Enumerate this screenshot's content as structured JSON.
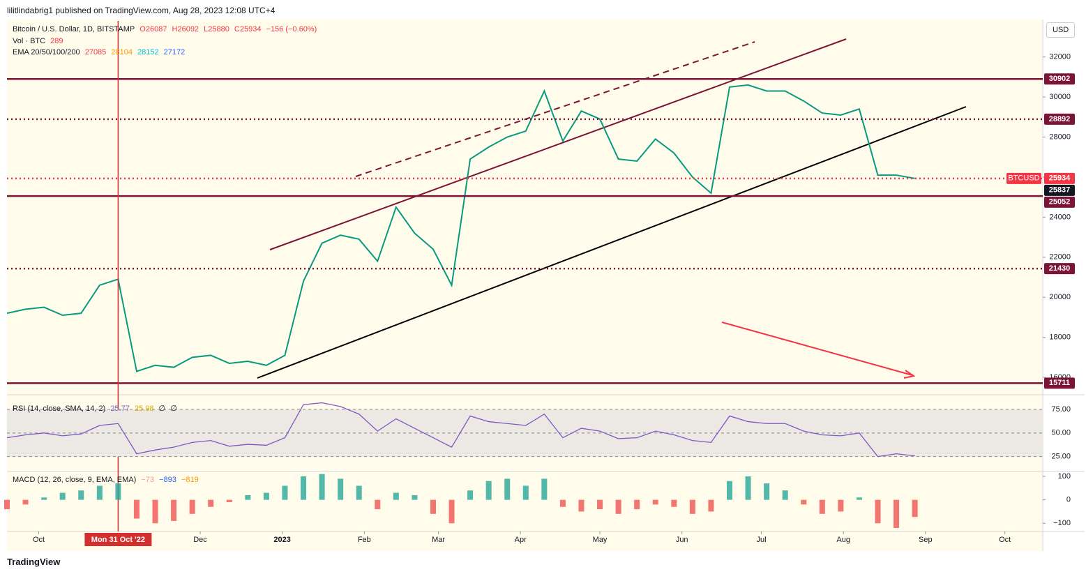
{
  "header": {
    "publisher": "lilitlindabrig1 published on TradingView.com, Aug 28, 2023 12:08 UTC+4",
    "currency": "USD",
    "footer": "TradingView"
  },
  "legend": {
    "symbol": "Bitcoin / U.S. Dollar, 1D, BITSTAMP",
    "open": "O26087",
    "high": "H26092",
    "low": "L25880",
    "close": "C25934",
    "change": "−156 (−0.60%)",
    "volume_title": "Vol · BTC",
    "volume": "289",
    "ema_title": "EMA 20/50/100/200",
    "ema": [
      "27085",
      "28104",
      "28152",
      "27172"
    ]
  },
  "chart_data": [
    {
      "type": "line",
      "title": "Bitcoin / U.S. Dollar, 1D, BITSTAMP",
      "x": [
        "2022-09-19",
        "2022-09-26",
        "2022-10-03",
        "2022-10-10",
        "2022-10-17",
        "2022-10-24",
        "2022-10-31",
        "2022-11-07",
        "2022-11-14",
        "2022-11-21",
        "2022-11-28",
        "2022-12-05",
        "2022-12-12",
        "2022-12-19",
        "2022-12-26",
        "2023-01-02",
        "2023-01-09",
        "2023-01-16",
        "2023-01-23",
        "2023-01-30",
        "2023-02-06",
        "2023-02-13",
        "2023-02-20",
        "2023-02-27",
        "2023-03-06",
        "2023-03-13",
        "2023-03-20",
        "2023-03-27",
        "2023-04-03",
        "2023-04-10",
        "2023-04-17",
        "2023-04-24",
        "2023-05-01",
        "2023-05-08",
        "2023-05-15",
        "2023-05-22",
        "2023-05-29",
        "2023-06-05",
        "2023-06-12",
        "2023-06-19",
        "2023-06-26",
        "2023-07-03",
        "2023-07-10",
        "2023-07-17",
        "2023-07-24",
        "2023-07-31",
        "2023-08-07",
        "2023-08-14",
        "2023-08-21",
        "2023-08-28"
      ],
      "series": [
        {
          "name": "BTCUSD",
          "color": "#089981",
          "values": [
            19200,
            19400,
            19500,
            19100,
            19200,
            20600,
            20900,
            16300,
            16600,
            16500,
            17000,
            17100,
            16700,
            16800,
            16600,
            17100,
            20800,
            22700,
            23100,
            22900,
            21800,
            24500,
            23200,
            22400,
            20600,
            26900,
            27500,
            28000,
            28300,
            30300,
            27800,
            29300,
            28900,
            26900,
            26800,
            27900,
            27200,
            26000,
            25200,
            30500,
            30600,
            30300,
            30300,
            29800,
            29200,
            29100,
            29400,
            26100,
            26100,
            25934
          ]
        }
      ],
      "xlim": [
        "2022-09-19",
        "2023-10-14"
      ],
      "xticks": [
        {
          "value": "2022-10-01",
          "label": "Oct"
        },
        {
          "value": "2022-12-01",
          "label": "Dec"
        },
        {
          "value": "2023-01-01",
          "label": "2023"
        },
        {
          "value": "2023-02-01",
          "label": "Feb"
        },
        {
          "value": "2023-03-01",
          "label": "Mar"
        },
        {
          "value": "2023-04-01",
          "label": "Apr"
        },
        {
          "value": "2023-05-01",
          "label": "May"
        },
        {
          "value": "2023-06-01",
          "label": "Jun"
        },
        {
          "value": "2023-07-01",
          "label": "Jul"
        },
        {
          "value": "2023-08-01",
          "label": "Aug"
        },
        {
          "value": "2023-09-01",
          "label": "Sep"
        },
        {
          "value": "2023-10-01",
          "label": "Oct"
        }
      ],
      "ylim": [
        15200,
        33800
      ],
      "yticks": [
        16000,
        18000,
        20000,
        22000,
        24000,
        26000,
        28000,
        30000,
        32000
      ],
      "levels": [
        {
          "value": 30902,
          "style": "solid",
          "color": "#7b1437"
        },
        {
          "value": 28892,
          "style": "dotted",
          "color": "#7b1437"
        },
        {
          "value": 25934,
          "style": "dotted",
          "color": "#f23645"
        },
        {
          "value": 25837,
          "style": "none",
          "color": "#131722"
        },
        {
          "value": 25052,
          "style": "solid",
          "color": "#7b1437"
        },
        {
          "value": 21430,
          "style": "dotted",
          "color": "#7b1437"
        },
        {
          "value": 15711,
          "style": "solid",
          "color": "#7b1437"
        }
      ],
      "crosshair": {
        "value": "2022-10-31",
        "label": "Mon 31 Oct '22"
      }
    },
    {
      "type": "line",
      "title": "RSI (14, close, SMA, 14, 2)",
      "annotations": [
        "25.77",
        "25.98",
        "∅",
        "∅"
      ],
      "series": [
        {
          "name": "RSI",
          "color": "#7e57c2",
          "values": [
            45,
            48,
            50,
            47,
            49,
            58,
            60,
            28,
            32,
            35,
            40,
            42,
            36,
            38,
            37,
            45,
            80,
            82,
            78,
            70,
            52,
            65,
            55,
            45,
            35,
            68,
            62,
            60,
            58,
            70,
            45,
            55,
            52,
            44,
            45,
            52,
            48,
            42,
            40,
            68,
            62,
            60,
            60,
            52,
            48,
            47,
            50,
            25,
            28,
            25.77
          ]
        }
      ],
      "ylim": [
        10,
        89
      ],
      "yticks": [
        {
          "value": 25,
          "label": "25.00"
        },
        {
          "value": 50,
          "label": "50.00"
        },
        {
          "value": 75,
          "label": "75.00"
        }
      ]
    },
    {
      "type": "bar",
      "title": "MACD (12, 26, close, 9, EMA, EMA)",
      "annotations": [
        "−73",
        "−893",
        "−819"
      ],
      "series": [
        {
          "name": "Histogram",
          "color": "#26a69a",
          "negative_color": "#ef5350",
          "values": [
            -40,
            -20,
            10,
            30,
            40,
            60,
            70,
            -80,
            -100,
            -90,
            -60,
            -30,
            -10,
            20,
            30,
            60,
            100,
            110,
            90,
            60,
            -40,
            30,
            20,
            -60,
            -100,
            40,
            80,
            90,
            60,
            90,
            -30,
            -50,
            -40,
            -60,
            -40,
            -20,
            -30,
            -60,
            -50,
            80,
            100,
            70,
            40,
            -20,
            -60,
            -50,
            10,
            -100,
            -120,
            -73
          ]
        }
      ],
      "ylim": [
        -135,
        118
      ],
      "yticks": [
        {
          "value": -100,
          "label": "−100"
        },
        0,
        100
      ]
    }
  ]
}
